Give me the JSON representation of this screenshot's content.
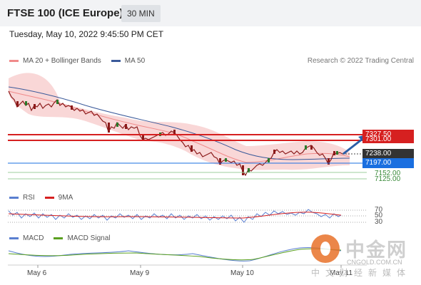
{
  "header": {
    "title": "FTSE 100 (ICE Europe)",
    "timeframe": "30 MIN"
  },
  "timestamp": "Tuesday, May 10, 2022 9:45:50 PM CET",
  "legend_price": [
    {
      "label": "MA 20 + Bollinger Bands",
      "color": "#f08a8a"
    },
    {
      "label": "MA 50",
      "color": "#3b5a9a"
    }
  ],
  "credit": "Research © 2022 Trading Central",
  "price_levels": [
    {
      "label": "7327.50",
      "color": "#d62020",
      "kind": "resistance"
    },
    {
      "label": "7301.00",
      "color": "#d62020",
      "kind": "resistance"
    },
    {
      "label": "7238.00",
      "color": "#333333",
      "kind": "last"
    },
    {
      "label": "7197.00",
      "color": "#1a6fe0",
      "kind": "pivot"
    },
    {
      "label": "7152.00",
      "color": "#3a8a3a",
      "kind": "support"
    },
    {
      "label": "7125.00",
      "color": "#3a8a3a",
      "kind": "support"
    }
  ],
  "legend_rsi": [
    {
      "label": "RSI",
      "color": "#5a7fd0"
    },
    {
      "label": "9MA",
      "color": "#d62020"
    }
  ],
  "rsi_levels": [
    "70",
    "50",
    "30"
  ],
  "legend_macd": [
    {
      "label": "MACD",
      "color": "#5a7fd0"
    },
    {
      "label": "MACD Signal",
      "color": "#5aa020"
    }
  ],
  "x_axis": [
    "May 6",
    "May 9",
    "May 10",
    "May 11"
  ],
  "watermark": {
    "cn": "中金网",
    "url": "CNGOLD.COM.CN",
    "sub": "中文财经新媒体"
  }
}
